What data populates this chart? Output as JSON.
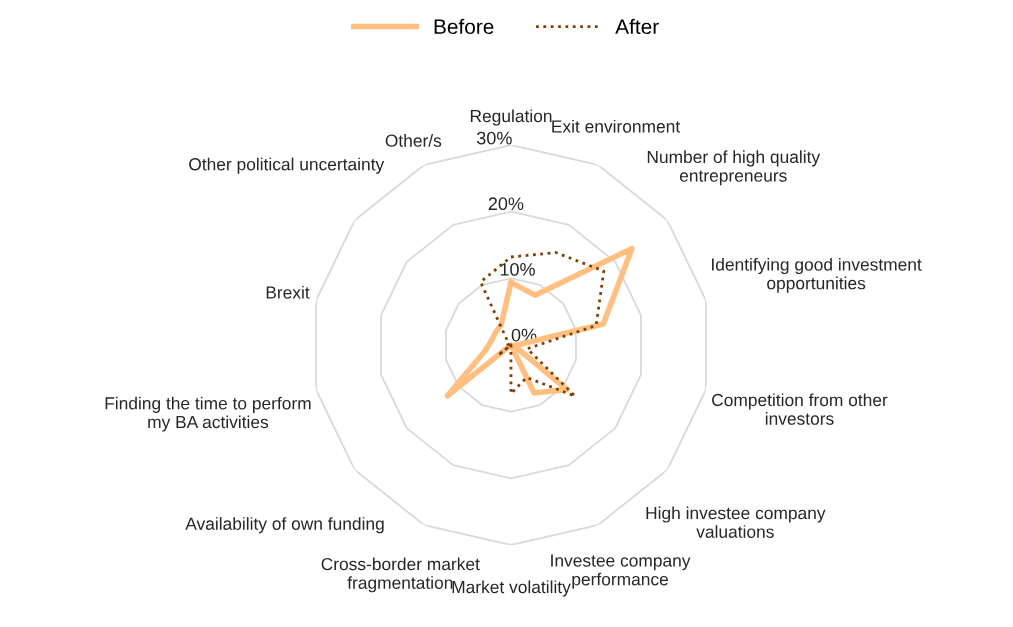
{
  "chart_data": {
    "type": "radar",
    "categories": [
      "Regulation",
      "Exit environment",
      "Number of high quality\nentrepreneurs",
      "Identifying good investment\nopportunities",
      "Competition from other\ninvestors",
      "High investee company\nvaluations",
      "Investee company\nperformance",
      "Market volatility",
      "Cross-border market\nfragmentation",
      "Availability of own funding",
      "Finding the time to perform\nmy BA activities",
      "Brexit",
      "Other political uncertainty",
      "Other/s"
    ],
    "series": [
      {
        "name": "Before",
        "color": "#ffbf80",
        "line_style": "solid",
        "values": [
          9.4,
          8.3,
          23.2,
          14.2,
          0.5,
          10.7,
          8,
          0,
          0,
          12.2,
          4,
          3,
          3,
          3.4
        ]
      },
      {
        "name": "After",
        "color": "#7f3f00",
        "line_style": "dotted",
        "values": [
          13.2,
          15.4,
          17.8,
          13.1,
          2.5,
          12.3,
          5.4,
          7.3,
          0,
          2.5,
          0,
          0.5,
          0.5,
          10.5
        ]
      }
    ],
    "ylim": [
      0,
      30
    ],
    "yticks": [
      {
        "value": 0,
        "label": "0%"
      },
      {
        "value": 10,
        "label": "10%"
      },
      {
        "value": 20,
        "label": "20%"
      },
      {
        "value": 30,
        "label": "30%"
      }
    ],
    "grid": true,
    "legend": "top"
  }
}
